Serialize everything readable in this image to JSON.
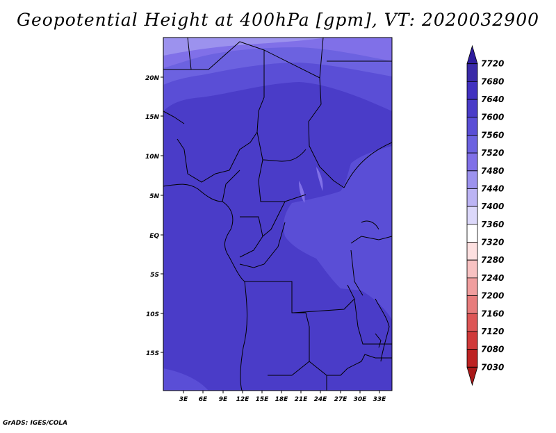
{
  "title": "Geopotential Height at 400hPa [gpm], VT: 2020032900",
  "credit": "GrADS: IGES/COLA",
  "map": {
    "lat_labels": [
      "20N",
      "15N",
      "10N",
      "5N",
      "EQ",
      "5S",
      "10S",
      "15S"
    ],
    "lon_labels": [
      "3E",
      "6E",
      "9E",
      "12E",
      "15E",
      "18E",
      "21E",
      "24E",
      "27E",
      "30E",
      "33E"
    ]
  },
  "colorbar": {
    "levels": [
      "7720",
      "7680",
      "7640",
      "7600",
      "7560",
      "7520",
      "7480",
      "7440",
      "7400",
      "7360",
      "7320",
      "7280",
      "7240",
      "7200",
      "7160",
      "7120",
      "7080",
      "7030"
    ],
    "colors": [
      "#2e1c9c",
      "#3a2aa8",
      "#4131c0",
      "#4a3cc8",
      "#5a4ed6",
      "#6c62e0",
      "#8070e8",
      "#9c92ee",
      "#bcb4f4",
      "#dcd8fa",
      "#ffffff",
      "#fde0e0",
      "#f8c2c2",
      "#f09e9e",
      "#e77c7c",
      "#dd5656",
      "#d03a3a",
      "#bd2222",
      "#a81818"
    ]
  }
}
